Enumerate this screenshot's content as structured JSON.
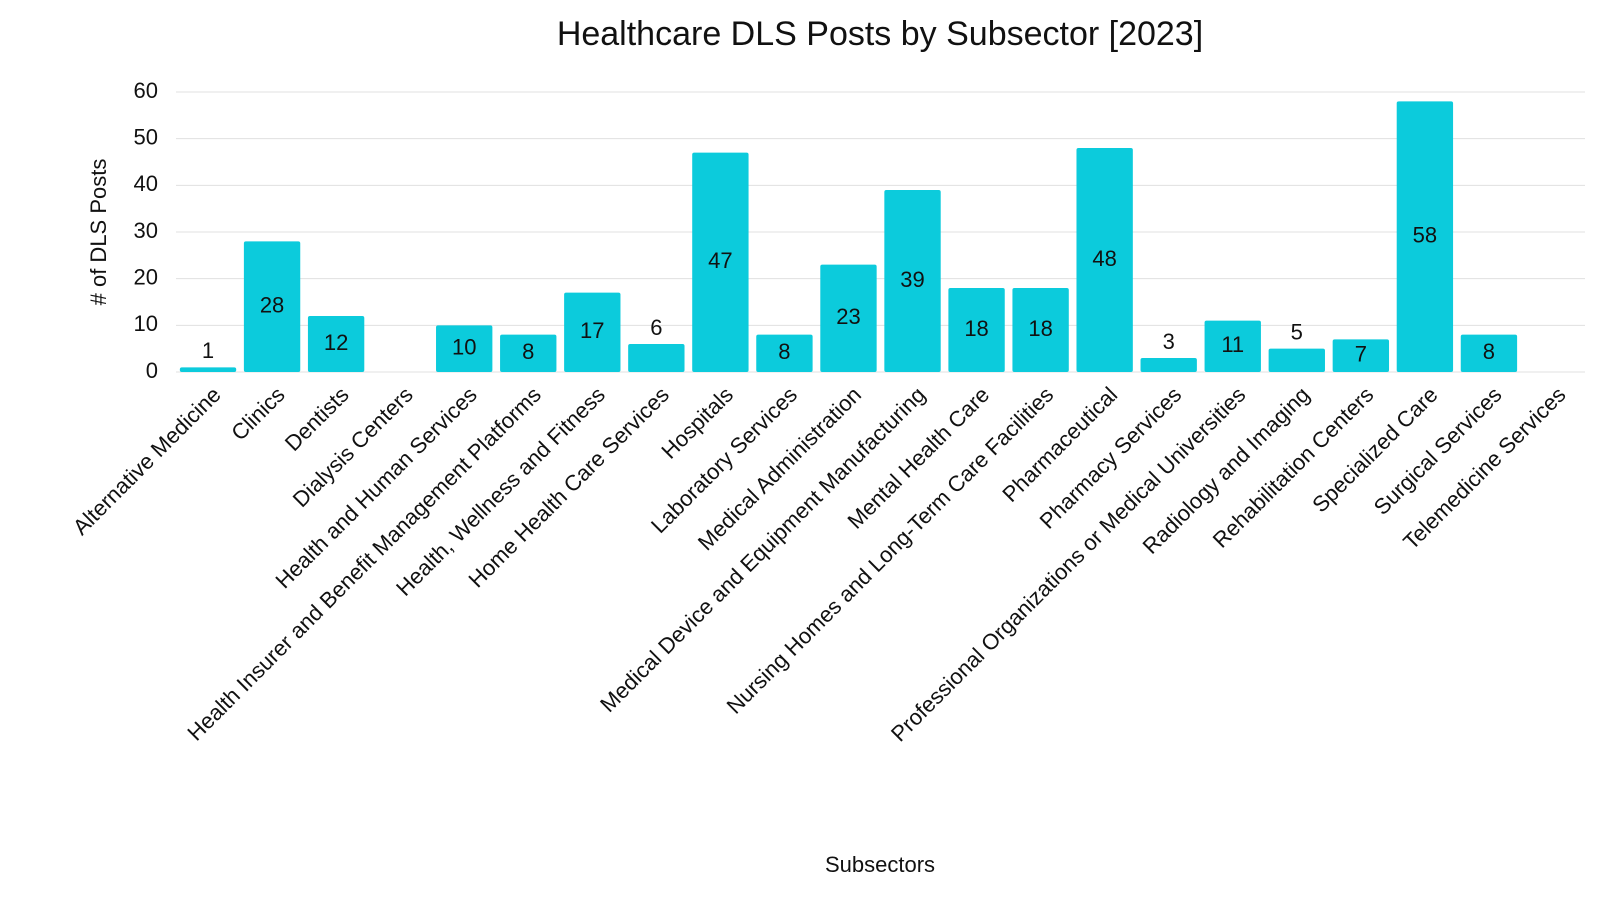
{
  "chart_data": {
    "type": "bar",
    "title": "Healthcare DLS Posts by Subsector [2023]",
    "x_label": "Subsectors",
    "y_label": "# of DLS Posts",
    "categories": [
      "Alternative Medicine",
      "Clinics",
      "Dentists",
      "Dialysis Centers",
      "Health and Human Services",
      "Health Insurer and Benefit Management Platforms",
      "Health, Wellness and Fitness",
      "Home Health Care Services",
      "Hospitals",
      "Laboratory Services",
      "Medical Administration",
      "Medical Device and Equipment Manufacturing",
      "Mental Health Care",
      "Nursing Homes and Long-Term Care Facilities",
      "Pharmaceutical",
      "Pharmacy Services",
      "Professional Organizations or Medical Universities",
      "Radiology and Imaging",
      "Rehabilitation Centers",
      "Specialized Care",
      "Surgical Services",
      "Telemedicine Services"
    ],
    "values": [
      1,
      28,
      12,
      null,
      10,
      8,
      17,
      6,
      47,
      8,
      23,
      39,
      18,
      18,
      48,
      3,
      11,
      5,
      7,
      58,
      8,
      null
    ],
    "color": "#0ccbdc",
    "ylim": [
      0,
      60
    ],
    "yticks": [
      0,
      10,
      20,
      30,
      40,
      50,
      60
    ],
    "grid": true
  }
}
